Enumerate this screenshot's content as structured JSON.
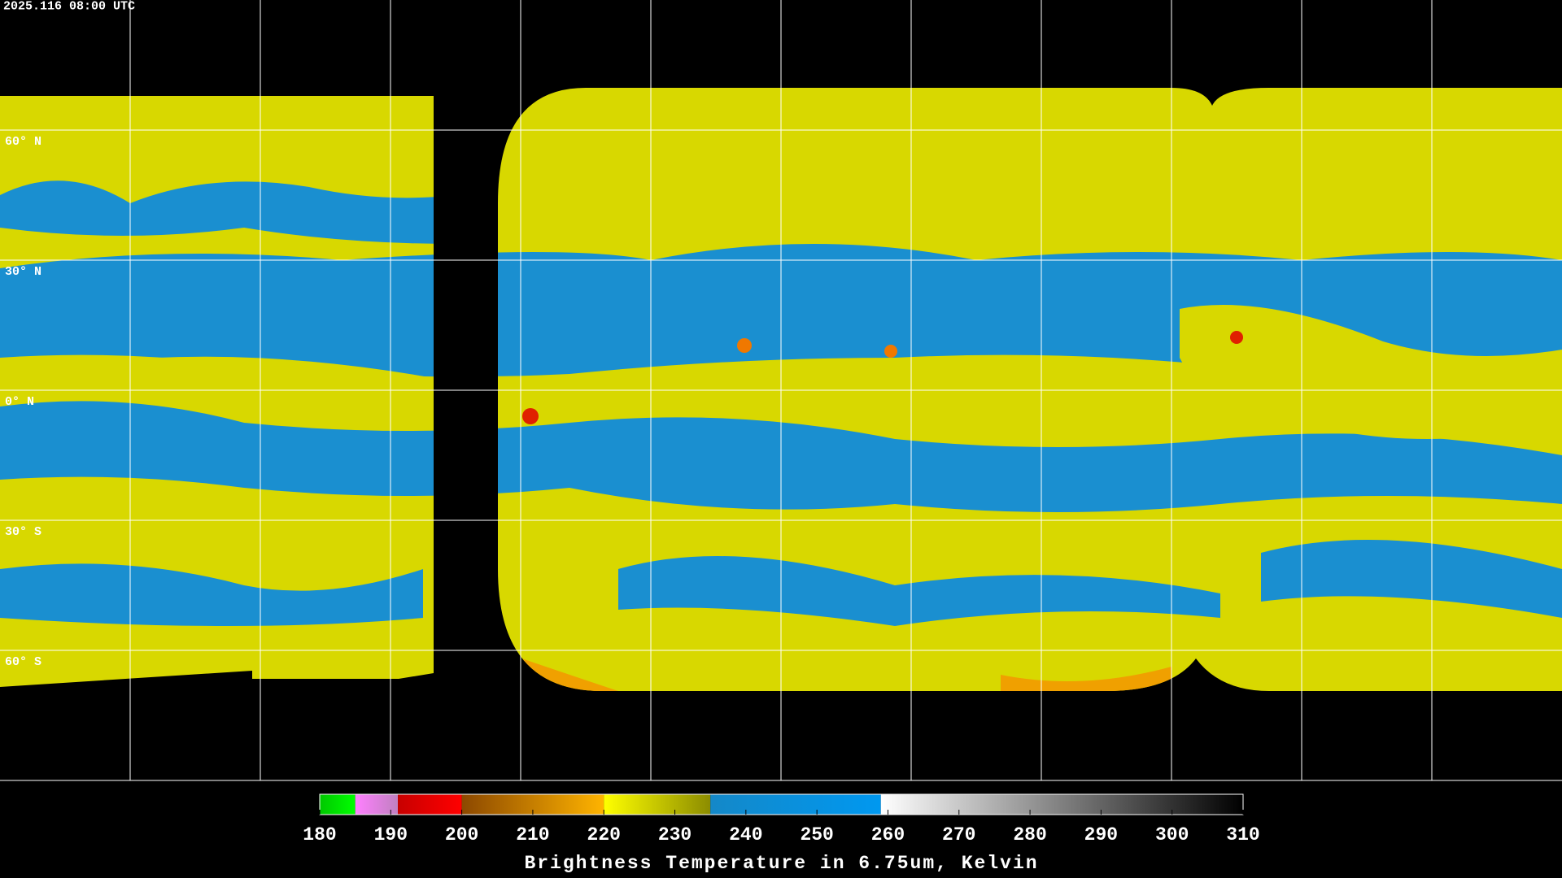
{
  "timestamp": "2025.116 08:00 UTC",
  "latitude_labels": [
    "60° N",
    "30° N",
    "0° N",
    "30° S",
    "60° S"
  ],
  "colorbar": {
    "title": "Brightness Temperature in 6.75um, Kelvin",
    "lim": [
      180,
      310
    ],
    "ticks": [
      180,
      190,
      200,
      210,
      220,
      230,
      240,
      250,
      260,
      270,
      280,
      290,
      300,
      310
    ],
    "segments": [
      {
        "from": 180,
        "to": 185,
        "colors": [
          "#00c800",
          "#00ff00"
        ]
      },
      {
        "from": 185,
        "to": 191,
        "colors": [
          "#ff80ff",
          "#c080c0"
        ]
      },
      {
        "from": 191,
        "to": 200,
        "colors": [
          "#c80000",
          "#ff0000"
        ]
      },
      {
        "from": 200,
        "to": 220,
        "colors": [
          "#8c4800",
          "#ffb400"
        ]
      },
      {
        "from": 220,
        "to": 235,
        "colors": [
          "#ffff00",
          "#8c8c00"
        ]
      },
      {
        "from": 235,
        "to": 259,
        "colors": [
          "#1488c8",
          "#0098f0"
        ]
      },
      {
        "from": 259,
        "to": 310,
        "colors": [
          "#ffffff",
          "#000000"
        ]
      }
    ]
  }
}
